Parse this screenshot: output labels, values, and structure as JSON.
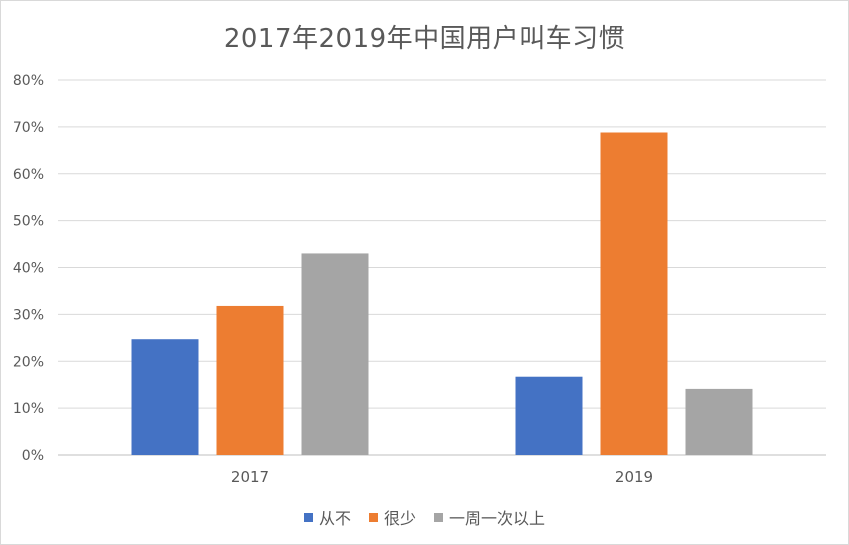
{
  "chart_data": {
    "type": "bar",
    "title": "2017年2019年中国用户叫车习惯",
    "categories": [
      "2017",
      "2019"
    ],
    "series": [
      {
        "name": "从不",
        "color": "#4472c4",
        "values": [
          24.7,
          16.7
        ]
      },
      {
        "name": "很少",
        "color": "#ed7d31",
        "values": [
          31.8,
          68.8
        ]
      },
      {
        "name": "一周一次以上",
        "color": "#a5a5a5",
        "values": [
          43.0,
          14.1
        ]
      }
    ],
    "ylim": [
      0,
      80
    ],
    "yticks": [
      "0%",
      "10%",
      "20%",
      "30%",
      "40%",
      "50%",
      "60%",
      "70%",
      "80%"
    ],
    "xlabel": "",
    "ylabel": "",
    "legend_position": "bottom",
    "grid": true
  }
}
